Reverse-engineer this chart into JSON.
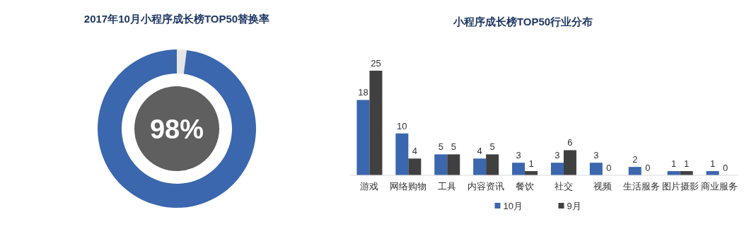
{
  "chart_data": [
    {
      "type": "donut",
      "title": "2017年10月小程序成长榜TOP50替换率",
      "categories": [
        null,
        null
      ],
      "values": [
        2,
        98
      ],
      "colors": [
        "#e6e6e6",
        "#3a67ae"
      ],
      "annotations": [
        "98%"
      ]
    },
    {
      "type": "bar",
      "title": "小程序成长榜TOP50行业分布",
      "categories": [
        "游戏",
        "网络购物",
        "工具",
        "内容资讯",
        "餐饮",
        "社交",
        "视频",
        "生活服务",
        "图片摄影",
        "商业服务"
      ],
      "series": [
        {
          "name": "10月",
          "color": "#3a67ae",
          "values": [
            18,
            10,
            5,
            4,
            3,
            3,
            3,
            2,
            1,
            1
          ]
        },
        {
          "name": "9月",
          "color": "#404040",
          "values": [
            25,
            4,
            5,
            5,
            1,
            6,
            0,
            0,
            1,
            0
          ]
        }
      ],
      "data_labels": true,
      "legend": "bottom"
    }
  ]
}
